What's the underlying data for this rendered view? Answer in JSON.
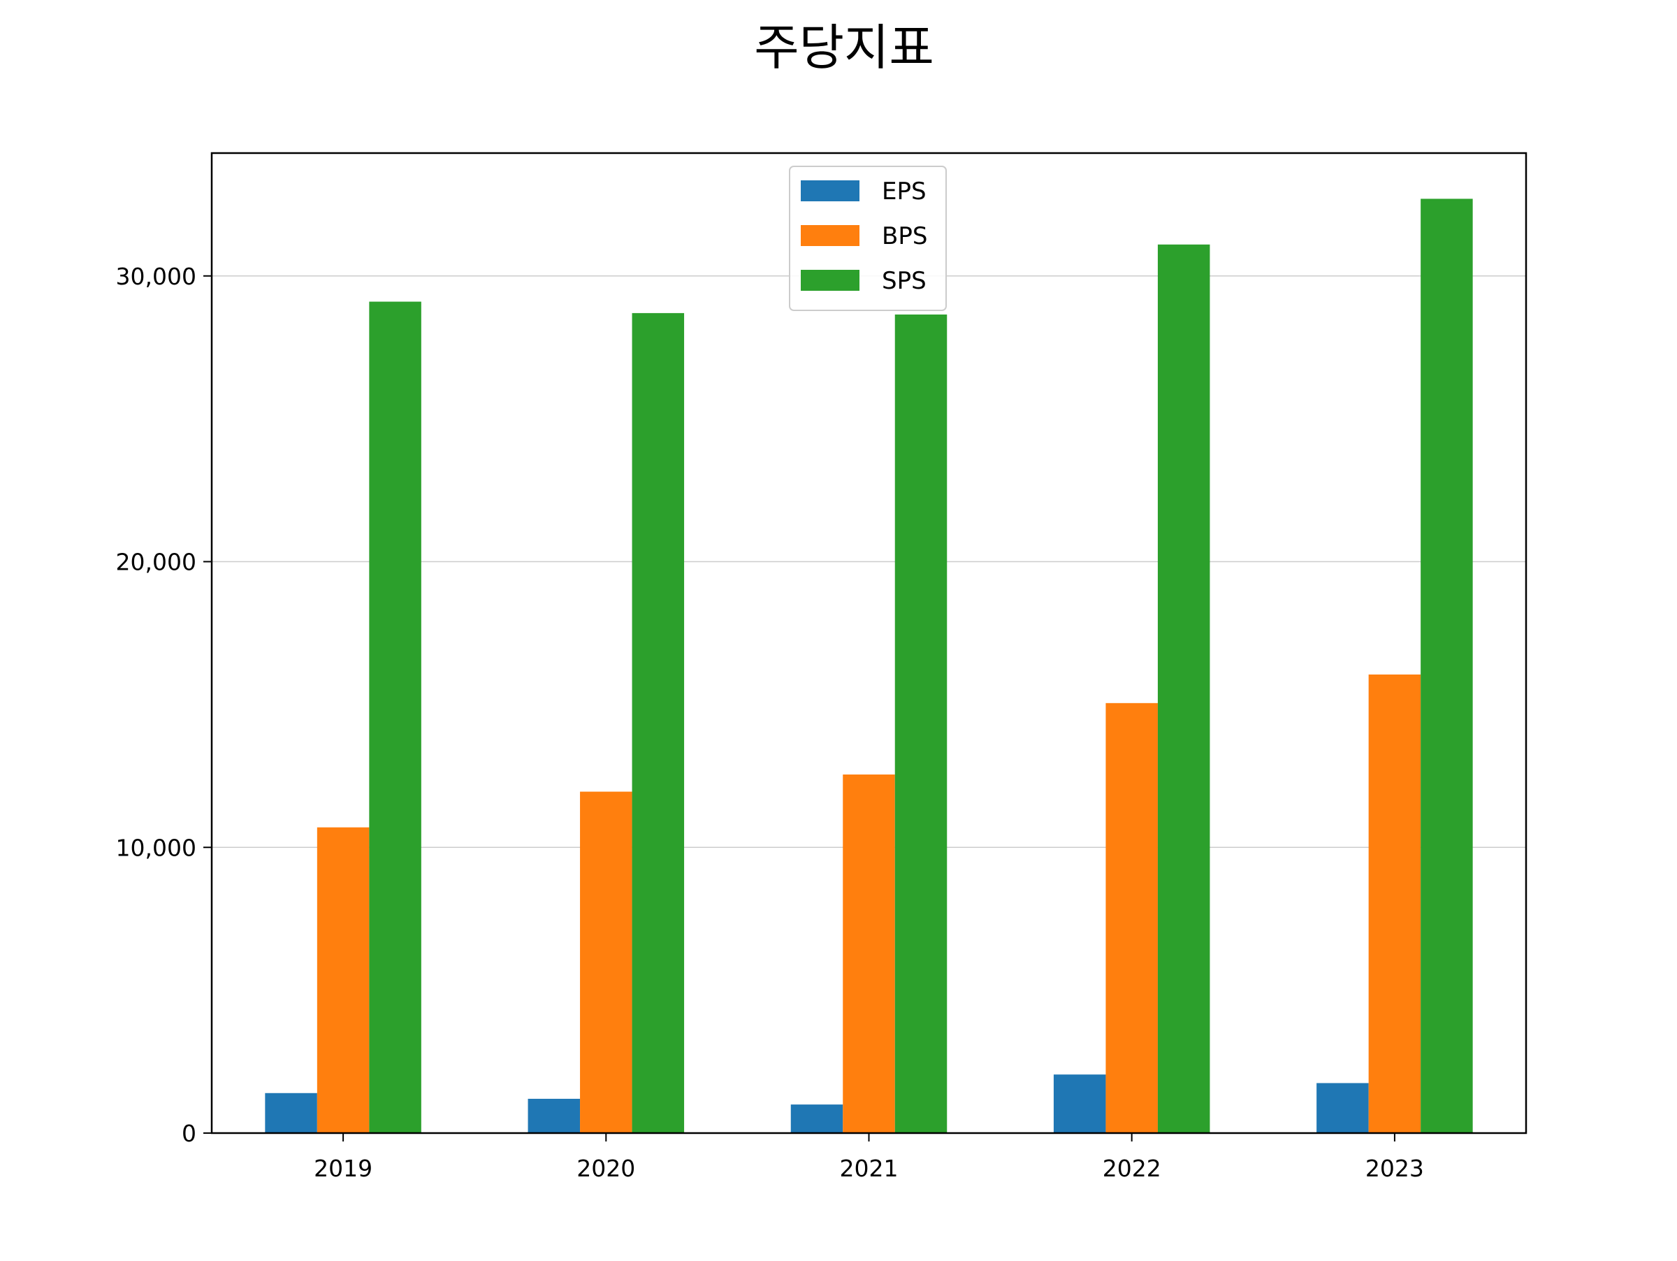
{
  "chart_data": {
    "type": "bar",
    "title": "주당지표",
    "xlabel": "",
    "ylabel": "",
    "categories": [
      "2019",
      "2020",
      "2021",
      "2022",
      "2023"
    ],
    "series": [
      {
        "name": "EPS",
        "color": "#1f77b4",
        "values": [
          1400,
          1200,
          1000,
          2050,
          1750
        ]
      },
      {
        "name": "BPS",
        "color": "#ff7f0e",
        "values": [
          10700,
          11950,
          12550,
          15050,
          16050
        ]
      },
      {
        "name": "SPS",
        "color": "#2ca02c",
        "values": [
          29100,
          28700,
          28650,
          31100,
          32700
        ]
      }
    ],
    "ylim": [
      0,
      34300
    ],
    "yticks": [
      0,
      10000,
      20000,
      30000
    ],
    "ytick_labels": [
      "0",
      "10,000",
      "20,000",
      "30,000"
    ],
    "grid": {
      "y": true,
      "x": false
    },
    "legend": {
      "placement": "top-center"
    }
  }
}
